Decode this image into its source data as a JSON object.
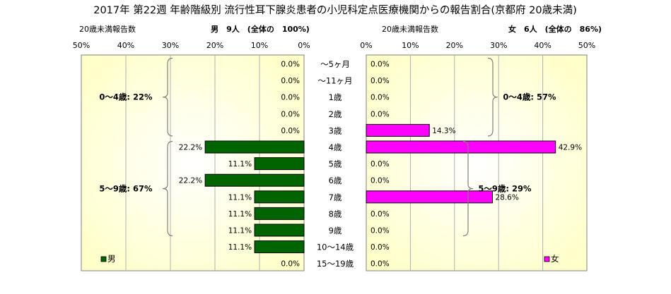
{
  "title": "2017年 第22週 年齢階級別 流行性耳下腺炎患者の小児科定点医療機関からの報告割合(京都府 20歳未満)",
  "colors": {
    "male": "#006400",
    "female": "#ff00ff",
    "plot_bg_edge": "#ffffd0",
    "plot_bg_center": "#ffffff"
  },
  "chart_data": [
    {
      "type": "bar",
      "orientation": "horizontal",
      "side": "left",
      "subtitle_left": "20歳未満報告数",
      "subtitle_right": "男　9人　(全体の　100%)",
      "legend": "男",
      "xlim": [
        0,
        50
      ],
      "xticks": [
        "50%",
        "40%",
        "30%",
        "20%",
        "10%",
        "0%"
      ],
      "categories": [
        "～5ヶ月",
        "～11ヶ月",
        "1歳",
        "2歳",
        "3歳",
        "4歳",
        "5歳",
        "6歳",
        "7歳",
        "8歳",
        "9歳",
        "10～14歳",
        "15～19歳"
      ],
      "values": [
        0.0,
        0.0,
        0.0,
        0.0,
        0.0,
        22.2,
        11.1,
        22.2,
        11.1,
        11.1,
        11.1,
        11.1,
        0.0
      ],
      "labels": [
        "0.0%",
        "0.0%",
        "0.0%",
        "0.0%",
        "0.0%",
        "22.2%",
        "11.1%",
        "22.2%",
        "11.1%",
        "11.1%",
        "11.1%",
        "11.1%",
        "0.0%"
      ],
      "group_annotations": [
        {
          "text": "0～4歳: 22%",
          "from": 0,
          "to": 4
        },
        {
          "text": "5～9歳: 67%",
          "from": 5,
          "to": 10
        }
      ]
    },
    {
      "type": "bar",
      "orientation": "horizontal",
      "side": "right",
      "subtitle_left": "20歳未満報告数",
      "subtitle_right": "女　6人　(全体の　86%)",
      "legend": "女",
      "xlim": [
        0,
        50
      ],
      "xticks": [
        "0%",
        "10%",
        "20%",
        "30%",
        "40%",
        "50%"
      ],
      "categories": [
        "～5ヶ月",
        "～11ヶ月",
        "1歳",
        "2歳",
        "3歳",
        "4歳",
        "5歳",
        "6歳",
        "7歳",
        "8歳",
        "9歳",
        "10～14歳",
        "15～19歳"
      ],
      "values": [
        0.0,
        0.0,
        0.0,
        0.0,
        14.3,
        42.9,
        0.0,
        0.0,
        28.6,
        0.0,
        0.0,
        0.0,
        0.0
      ],
      "labels": [
        "0.0%",
        "0.0%",
        "0.0%",
        "0.0%",
        "14.3%",
        "42.9%",
        "0.0%",
        "0.0%",
        "28.6%",
        "0.0%",
        "0.0%",
        "0.0%",
        "0.0%"
      ],
      "group_annotations": [
        {
          "text": "0～4歳: 57%",
          "from": 0,
          "to": 4
        },
        {
          "text": "5～9歳: 29%",
          "from": 5,
          "to": 10
        }
      ]
    }
  ]
}
